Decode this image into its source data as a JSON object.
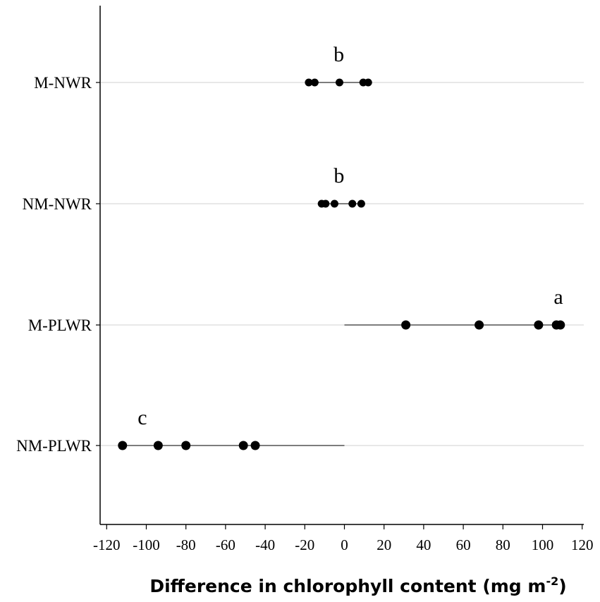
{
  "chart_data": {
    "type": "scatter",
    "title": "",
    "xlabel": "Difference in chlorophyll content (mg m",
    "xlabel_sup": "-2",
    "xlabel_close": ")",
    "xlim": [
      -123,
      122
    ],
    "xticks": [
      -120,
      -100,
      -80,
      -60,
      -40,
      -20,
      0,
      20,
      40,
      60,
      80,
      100,
      120
    ],
    "grid": "horizontal",
    "legend": "none",
    "categories": [
      "M-NWR",
      "NM-NWR",
      "M-PLWR",
      "NM-PLWR"
    ],
    "series": [
      {
        "category": "M-NWR",
        "letter": "b",
        "x": [
          -18,
          -15,
          -2.5,
          9.5,
          12
        ]
      },
      {
        "category": "NM-NWR",
        "letter": "b",
        "x": [
          -11.5,
          -9.5,
          -5,
          4,
          8.5
        ]
      },
      {
        "category": "M-PLWR",
        "letter": "a",
        "x": [
          31,
          68,
          98,
          107,
          109
        ]
      },
      {
        "category": "NM-PLWR",
        "letter": "c",
        "x": [
          -112,
          -94,
          -80,
          -51,
          -45
        ]
      }
    ],
    "colors": {
      "points": "#000000",
      "range_line": "#555555",
      "grid": "#d9d9d9",
      "axis": "#000000"
    }
  }
}
